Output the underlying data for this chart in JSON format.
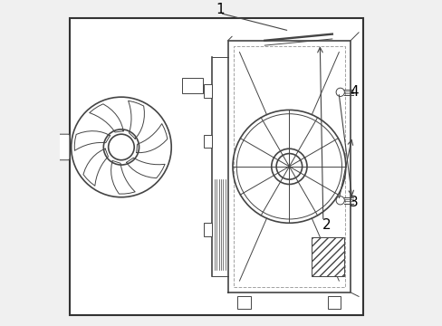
{
  "background_color": "#f0f0f0",
  "border_color": "#333333",
  "line_color": "#444444",
  "label_color": "#000000",
  "figsize": [
    4.89,
    3.6
  ],
  "dpi": 100
}
